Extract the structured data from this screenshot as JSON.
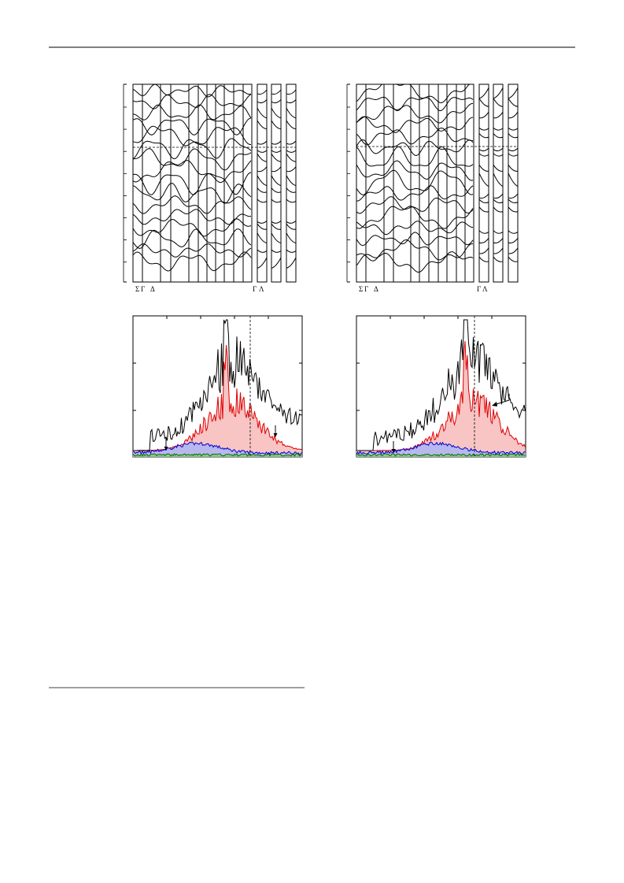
{
  "figure": {
    "left_bands": {
      "k_labels": [
        "Σ",
        "Γ",
        "Δ",
        "Γ",
        "Λ"
      ]
    },
    "right_bands": {
      "k_labels": [
        "Σ",
        "Γ",
        "Δ",
        "Γ",
        "Λ"
      ]
    }
  }
}
